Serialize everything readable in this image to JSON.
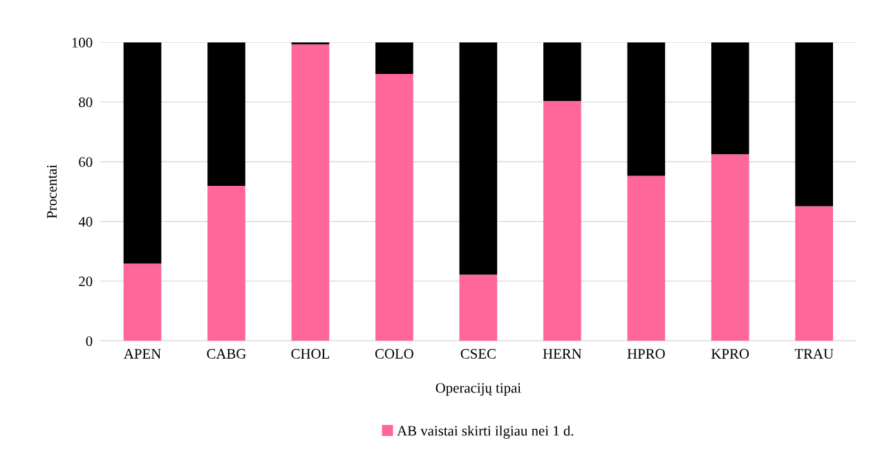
{
  "chart_data": {
    "type": "bar",
    "stacked": true,
    "xlabel": "Operacijų tipai",
    "ylabel": "Procentai",
    "categories": [
      "APEN",
      "CABG",
      "CHOL",
      "COLO",
      "CSEC",
      "HERN",
      "HPRO",
      "KPRO",
      "TRAU"
    ],
    "series": [
      {
        "name": "AB vaistai skirti ilgiau nei 1 d.",
        "color": "#ff6699",
        "values": [
          25.9,
          51.9,
          99.3,
          89.4,
          22.2,
          80.3,
          55.3,
          62.5,
          45.1
        ]
      },
      {
        "color": "#000000",
        "values": [
          74.1,
          48.1,
          0.7,
          10.6,
          77.8,
          19.7,
          44.7,
          37.5,
          54.9
        ]
      }
    ],
    "ylim": [
      0,
      100
    ],
    "yticks": [
      0,
      20,
      40,
      60,
      80,
      100
    ],
    "grid": "y",
    "legend": "bottom"
  }
}
